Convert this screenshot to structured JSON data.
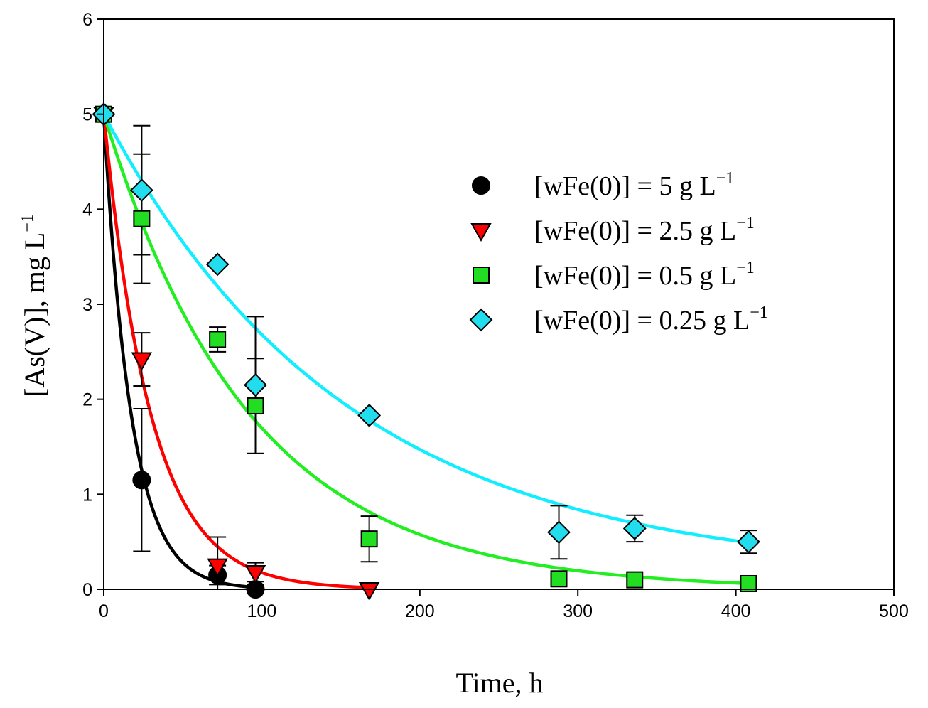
{
  "chart_data": {
    "type": "scatter",
    "title": "",
    "xlabel": "Time, h",
    "ylabel_main": "[As(V)], mg L",
    "ylabel_sup": "−1",
    "xlim": [
      0,
      500
    ],
    "ylim": [
      0,
      6
    ],
    "xticks": [
      "0",
      "100",
      "200",
      "300",
      "400",
      "500"
    ],
    "yticks": [
      "0",
      "1",
      "2",
      "3",
      "4",
      "5",
      "6"
    ],
    "grid": false,
    "legend_position": "top-right",
    "series": [
      {
        "name": "[wFe(0)] = 5 g L",
        "name_sup": "−1",
        "marker": "circle",
        "color": "#000000",
        "line_color": "#000000",
        "x": [
          0,
          24,
          72,
          96
        ],
        "y": [
          5.0,
          1.15,
          0.15,
          0.0
        ],
        "err": [
          0,
          0.75,
          0.1,
          0.05
        ],
        "fit_k": 0.0575
      },
      {
        "name": "[wFe(0)] = 2.5 g L",
        "name_sup": "−1",
        "marker": "triangle-down",
        "color": "#ff0000",
        "line_color": "#ff0000",
        "x": [
          0,
          24,
          72,
          96,
          168
        ],
        "y": [
          5.0,
          2.42,
          0.25,
          0.18,
          0.0
        ],
        "err": [
          0,
          0.28,
          0.3,
          0.1,
          0
        ],
        "fit_k": 0.0335
      },
      {
        "name": "[wFe(0)] = 0.5 g L",
        "name_sup": "−1",
        "marker": "square",
        "color": "#22dd22",
        "line_color": "#22ee22",
        "x": [
          0,
          24,
          72,
          96,
          168,
          288,
          336,
          408
        ],
        "y": [
          5.0,
          3.9,
          2.63,
          1.93,
          0.53,
          0.11,
          0.1,
          0.06
        ],
        "err": [
          0,
          0.68,
          0.13,
          0.5,
          0.24,
          0,
          0,
          0
        ],
        "fit_k": 0.0108
      },
      {
        "name": "[wFe(0)] = 0.25 g L",
        "name_sup": "−1",
        "marker": "diamond",
        "color": "#22ddee",
        "line_color": "#11eeff",
        "x": [
          0,
          24,
          72,
          96,
          168,
          288,
          336,
          408
        ],
        "y": [
          5.0,
          4.2,
          3.42,
          2.15,
          1.83,
          0.6,
          0.64,
          0.5
        ],
        "err": [
          0,
          0.68,
          0,
          0.72,
          0,
          0.28,
          0.14,
          0.12
        ],
        "fit_k": 0.0065,
        "fit_c": 0.15
      }
    ]
  }
}
